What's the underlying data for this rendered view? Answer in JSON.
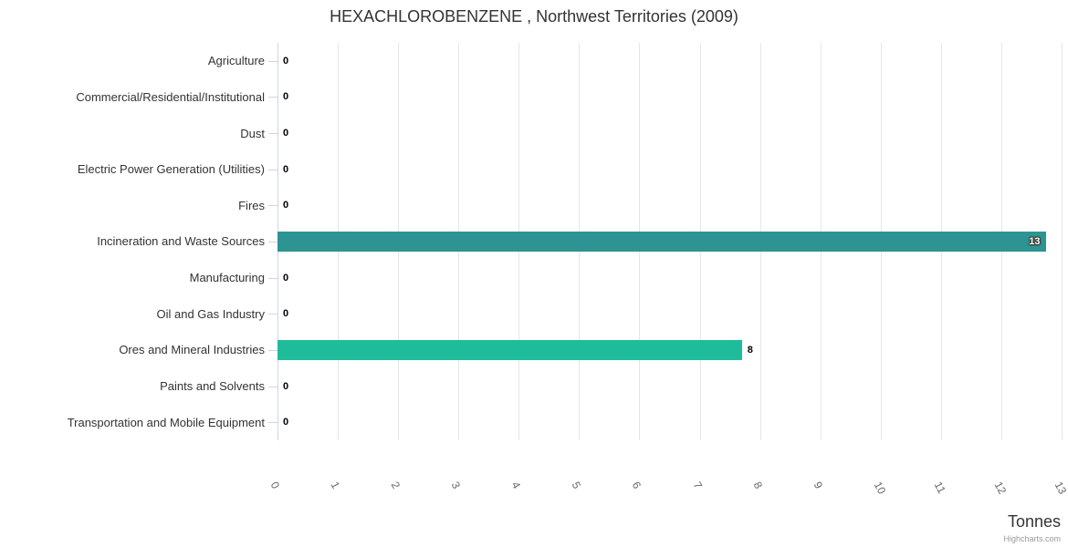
{
  "header": {
    "title": "HEXACHLOROBENZENE , Northwest Territories (2009)"
  },
  "credit": {
    "label": "Highcharts.com"
  },
  "chart_data": {
    "type": "bar",
    "orientation": "horizontal",
    "title": "HEXACHLOROBENZENE , Northwest Territories (2009)",
    "xlabel": "Tonnes",
    "ylabel": "",
    "categories": [
      "Agriculture",
      "Commercial/Residential/Institutional",
      "Dust",
      "Electric Power Generation (Utilities)",
      "Fires",
      "Incineration and Waste Sources",
      "Manufacturing",
      "Oil and Gas Industry",
      "Ores and Mineral Industries",
      "Paints and Solvents",
      "Transportation and Mobile Equipment"
    ],
    "values": [
      0,
      0,
      0,
      0,
      0,
      12.75,
      0,
      0,
      7.7,
      0,
      0
    ],
    "value_labels": [
      "0",
      "0",
      "0",
      "0",
      "0",
      "13",
      "0",
      "0",
      "8",
      "0",
      "0"
    ],
    "bar_colors": [
      null,
      null,
      null,
      null,
      null,
      "#2E9393",
      null,
      null,
      "#1FBC9A",
      null,
      null
    ],
    "xlim": [
      0,
      13
    ],
    "xticks": [
      0,
      1,
      2,
      3,
      4,
      5,
      6,
      7,
      8,
      9,
      10,
      11,
      12,
      13
    ],
    "xtick_rotation_deg": 62,
    "grid": true,
    "legend": false,
    "axis_colors": {
      "grid": "#e6e6e6",
      "axis_line": "#ccd6eb",
      "tick": "#ccd6eb"
    }
  }
}
